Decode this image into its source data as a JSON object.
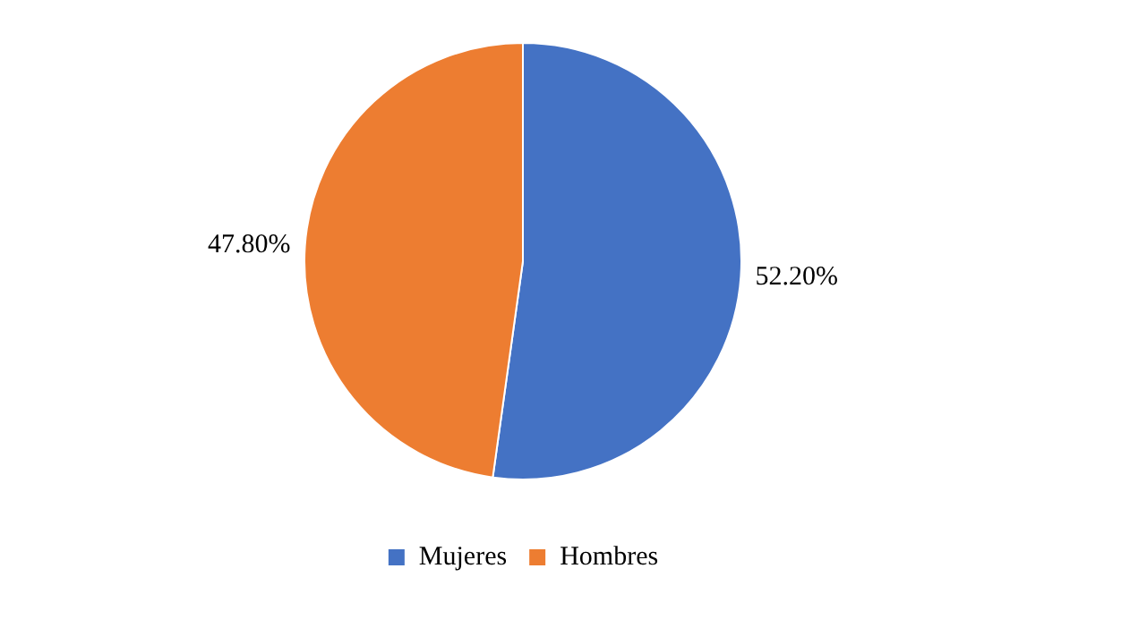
{
  "chart_data": {
    "type": "pie",
    "categories": [
      "Mujeres",
      "Hombres"
    ],
    "values": [
      52.2,
      47.8
    ],
    "colors": [
      "#4472c4",
      "#ed7d31"
    ],
    "value_labels": [
      "52.20%",
      "47.80%"
    ],
    "legend": "bottom"
  }
}
